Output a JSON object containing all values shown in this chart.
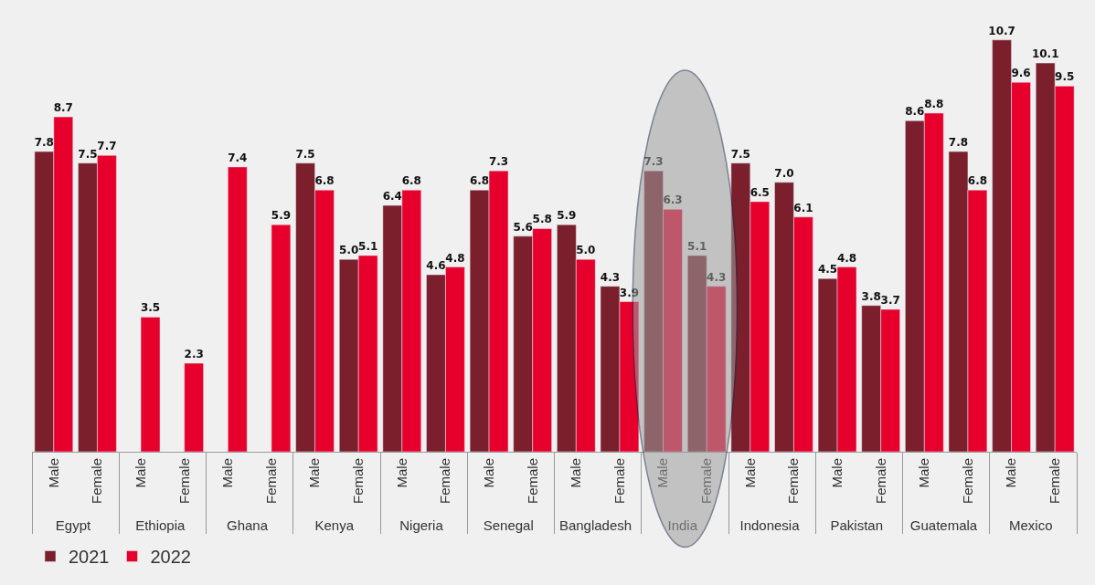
{
  "chart_data": {
    "type": "bar",
    "categories": [
      "Male",
      "Female",
      "Male",
      "Female",
      "Male",
      "Female",
      "Male",
      "Female",
      "Male",
      "Female",
      "Male",
      "Female",
      "Male",
      "Female",
      "Male",
      "Female",
      "Male",
      "Female",
      "Male",
      "Female",
      "Male",
      "Female",
      "Male",
      "Female"
    ],
    "annotations": [
      "Egypt",
      "Ethiopia",
      "Ghana",
      "Kenya",
      "Nigeria",
      "Senegal",
      "Bangladesh",
      "India",
      "Indonesia",
      "Pakistan",
      "Guatemala",
      "Mexico"
    ],
    "series": [
      {
        "name": "2021",
        "color": "#7a1f2b",
        "values": [
          7.8,
          7.5,
          null,
          null,
          null,
          null,
          7.5,
          5.0,
          6.4,
          4.6,
          6.8,
          5.6,
          5.9,
          4.3,
          7.3,
          5.1,
          7.5,
          7.0,
          4.5,
          3.8,
          8.6,
          7.8,
          10.7,
          10.1
        ],
        "value_labels": [
          "7.8",
          "7.5",
          null,
          null,
          null,
          null,
          "7.5",
          "5.0",
          "6.4",
          "4.6",
          "6.8",
          "5.6",
          "5.9",
          "4.3",
          "7.3",
          "5.1",
          "7.5",
          "7.0",
          "4.5",
          "3.8",
          "8.6",
          "7.8",
          "10.7",
          "10.1"
        ]
      },
      {
        "name": "2022",
        "color": "#e8002d",
        "values": [
          8.7,
          7.7,
          3.5,
          2.3,
          7.4,
          5.9,
          6.8,
          5.1,
          6.8,
          4.8,
          7.3,
          5.8,
          5.0,
          3.9,
          6.3,
          4.3,
          6.5,
          6.1,
          4.8,
          3.7,
          8.8,
          6.8,
          9.6,
          9.5
        ],
        "value_labels": [
          "8.7",
          "7.7",
          "3.5",
          "2.3",
          "7.4",
          "5.9",
          "6.8",
          "5.1",
          "6.8",
          "4.8",
          "7.3",
          "5.8",
          "5.0",
          "3.9",
          "6.3",
          "4.3",
          "6.5",
          "6.1",
          "4.8",
          "3.7",
          "8.8",
          "6.8",
          "9.6",
          "9.5"
        ]
      }
    ],
    "legend": "bottom left",
    "grid": false
  }
}
